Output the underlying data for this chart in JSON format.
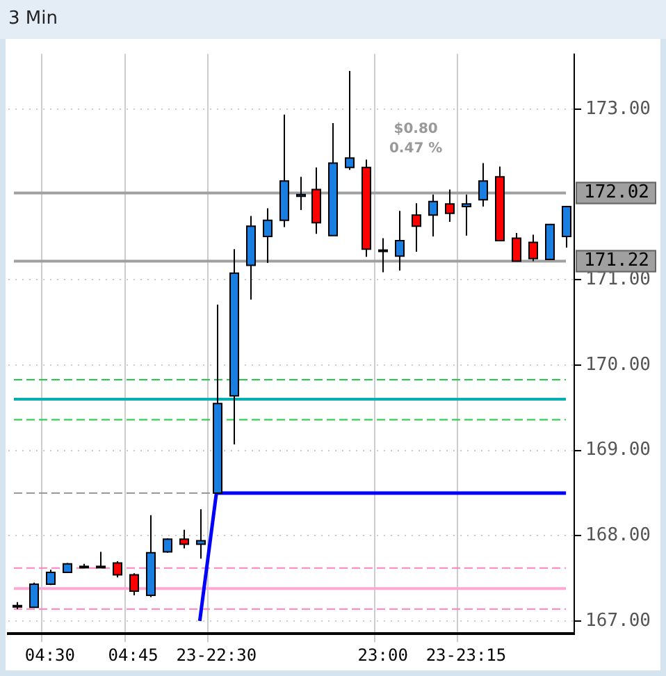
{
  "chart_data": {
    "type": "candlestick",
    "title": "3 Min",
    "categories": [
      null,
      null,
      "04:30",
      null,
      null,
      null,
      null,
      "04:45",
      null,
      null,
      null,
      null,
      "23-22:30",
      null,
      null,
      null,
      null,
      null,
      null,
      null,
      null,
      null,
      "23:00",
      null,
      null,
      null,
      null,
      "23-23:15",
      null,
      null,
      null,
      null,
      null,
      null
    ],
    "ohlc": [
      [
        167.18,
        167.22,
        167.14,
        167.18
      ],
      [
        167.16,
        167.45,
        167.16,
        167.43
      ],
      [
        167.43,
        167.6,
        167.42,
        167.57
      ],
      [
        167.57,
        167.68,
        167.57,
        167.67
      ],
      [
        167.64,
        167.67,
        167.62,
        167.64
      ],
      [
        167.64,
        167.81,
        167.64,
        167.64
      ],
      [
        167.68,
        167.7,
        167.51,
        167.54
      ],
      [
        167.54,
        167.56,
        167.3,
        167.35
      ],
      [
        167.3,
        168.24,
        167.28,
        167.8
      ],
      [
        167.81,
        167.97,
        167.8,
        167.96
      ],
      [
        167.96,
        168.07,
        167.85,
        167.9
      ],
      [
        167.9,
        168.31,
        167.73,
        167.94
      ],
      [
        168.5,
        170.71,
        168.5,
        169.55
      ],
      [
        169.64,
        171.36,
        169.07,
        171.08
      ],
      [
        171.17,
        171.75,
        170.77,
        171.63
      ],
      [
        171.51,
        171.84,
        171.2,
        171.7
      ],
      [
        171.7,
        172.94,
        171.62,
        172.16
      ],
      [
        171.98,
        172.21,
        171.82,
        172.0
      ],
      [
        172.06,
        172.32,
        171.54,
        171.67
      ],
      [
        171.52,
        172.84,
        171.52,
        172.37
      ],
      [
        172.32,
        173.45,
        172.29,
        172.43
      ],
      [
        172.32,
        172.41,
        171.27,
        171.36
      ],
      [
        171.35,
        171.49,
        171.09,
        171.35
      ],
      [
        171.28,
        171.81,
        171.11,
        171.46
      ],
      [
        171.76,
        171.9,
        171.33,
        171.63
      ],
      [
        171.76,
        172.0,
        171.51,
        171.92
      ],
      [
        171.89,
        172.06,
        171.68,
        171.78
      ],
      [
        171.86,
        172.0,
        171.52,
        171.89
      ],
      [
        171.94,
        172.37,
        171.86,
        172.16
      ],
      [
        172.21,
        172.33,
        171.46,
        171.46
      ],
      [
        171.49,
        171.55,
        171.22,
        171.22
      ],
      [
        171.44,
        171.53,
        171.22,
        171.25
      ],
      [
        171.24,
        171.65,
        171.24,
        171.65
      ],
      [
        171.51,
        171.86,
        171.38,
        171.86
      ]
    ],
    "colors": [
      "#000000",
      "#1a7de0",
      "#1a7de0",
      "#1a7de0",
      "#000000",
      "#000000",
      "#ff0000",
      "#ff0000",
      "#1a7de0",
      "#1a7de0",
      "#ff0000",
      "#1a7de0",
      "#1a7de0",
      "#1a7de0",
      "#1a7de0",
      "#1a7de0",
      "#1a7de0",
      "#1a7de0",
      "#ff0000",
      "#1a7de0",
      "#1a7de0",
      "#ff0000",
      "#ff0000",
      "#1a7de0",
      "#ff0000",
      "#1a7de0",
      "#ff0000",
      "#1a7de0",
      "#1a7de0",
      "#ff0000",
      "#ff0000",
      "#ff0000",
      "#1a7de0",
      "#1a7de0"
    ],
    "series": [
      {
        "type": "line",
        "color": "#0000ff",
        "values": [
          null,
          null,
          null,
          null,
          null,
          null,
          null,
          null,
          null,
          null,
          null,
          167.0,
          168.5,
          168.5,
          168.5,
          168.5,
          168.5,
          168.5,
          168.5,
          168.5,
          168.5,
          168.5,
          168.5,
          168.5,
          168.5,
          168.5,
          168.5,
          168.5,
          168.5,
          168.5,
          168.5,
          168.5,
          168.5,
          168.5
        ]
      }
    ],
    "ylim": [
      166.85,
      173.65
    ],
    "yticks": [
      {
        "value": 167,
        "label": "167.00"
      },
      {
        "value": 168,
        "label": "168.00"
      },
      {
        "value": 169,
        "label": "169.00"
      },
      {
        "value": 170,
        "label": "170.00"
      },
      {
        "value": 171,
        "label": "171.00"
      },
      {
        "value": 173,
        "label": "173.00"
      }
    ],
    "grid": true,
    "ref_lines": [
      {
        "axis": "y",
        "value": 169.83,
        "color": "#22cc44",
        "line_style": "dashed"
      },
      {
        "axis": "y",
        "value": 169.6,
        "color": "#00b0b0",
        "line_style": "solid"
      },
      {
        "axis": "y",
        "value": 169.36,
        "color": "#22cc44",
        "line_style": "dashed"
      },
      {
        "axis": "y",
        "value": 168.5,
        "color": "#999999",
        "line_style": "dashed"
      },
      {
        "axis": "y",
        "value": 167.62,
        "color": "#ff80c0",
        "line_style": "dashed"
      },
      {
        "axis": "y",
        "value": 167.38,
        "color": "#ffa8d4",
        "line_style": "solid"
      },
      {
        "axis": "y",
        "value": 167.14,
        "color": "#ff80c0",
        "line_style": "dashed"
      },
      {
        "axis": "y",
        "value": 172.02,
        "label": "172.02",
        "color": "#a0a0a0",
        "line_style": "solid"
      },
      {
        "axis": "y",
        "value": 171.22,
        "label": "171.22",
        "color": "#a0a0a0",
        "line_style": "solid"
      }
    ],
    "annotations": [
      "$0.80",
      "0.47 %"
    ],
    "legend": false
  }
}
